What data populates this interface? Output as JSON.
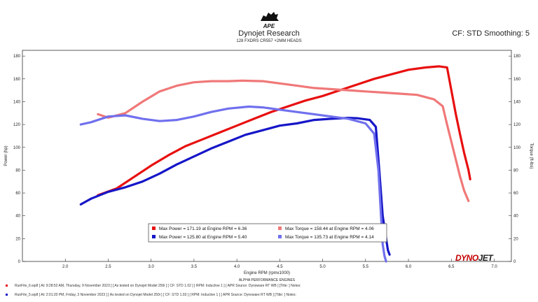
{
  "header": {
    "logo_text": "APE",
    "title": "Dynojet Research",
    "subtitle": "128 FXDRS CR557 +2MM HEADS",
    "cf_label": "CF: STD Smoothing: 5"
  },
  "brand": {
    "part1": "DYNO",
    "part2": "JET"
  },
  "footer": {
    "run1": "RunFile_6.wp8 [ At: 9:28:52 AM, Thursday, 9 November 2023 ] [ As tested on Dynojet Model 250i ] [ CF: STD 1.02 ] [ RPM: Inductive 1 ] [ APR Source: Dynoware RT WB ] [Title: ]    Notes:",
    "run2": "RunFile_5.wp8 [ At: 2:01:20 PM, Friday, 3 November 2023 ] [ As tested on Dynojet Model 250i ] [ CF: STD 1.03 ] [ RPM: Inductive 1 ] [ APR Source: Dynoware RT WB ] [Title: ]    Notes:"
  },
  "colors": {
    "red": "#e81010",
    "pink": "#f07878",
    "blue": "#1616c8",
    "lavender": "#7070ee"
  },
  "chart_data": {
    "type": "line",
    "title": "Dynojet Research",
    "xlabel": "Engine RPM (rpmx1000)",
    "x_sublabel": "ALPHA PERFORMANCE ENGINES",
    "ylabel_left": "Power (hp)",
    "ylabel_right": "Torque (ft-lbs)",
    "xlim": [
      1.5,
      7.2
    ],
    "ylim": [
      0,
      185
    ],
    "xticks": [
      "2.0",
      "2.5",
      "3.0",
      "3.5",
      "4.0",
      "4.5",
      "5.0",
      "5.5",
      "6.0",
      "6.5",
      "7.0"
    ],
    "yticks": [
      "0",
      "20",
      "40",
      "60",
      "80",
      "100",
      "120",
      "140",
      "160",
      "180"
    ],
    "grid": false,
    "legend_position": "bottom-center",
    "series": [
      {
        "name": "Max Power = 171.19 at Engine RPM = 6.36",
        "color": "#e81010",
        "x": [
          2.38,
          2.6,
          2.8,
          3.0,
          3.2,
          3.4,
          3.6,
          3.8,
          4.0,
          4.2,
          4.4,
          4.6,
          4.8,
          5.0,
          5.2,
          5.4,
          5.6,
          5.8,
          6.0,
          6.2,
          6.36,
          6.45,
          6.5,
          6.55,
          6.6,
          6.65,
          6.7,
          6.72
        ],
        "y": [
          58,
          64,
          74,
          84,
          93,
          101,
          107,
          113,
          119,
          125,
          131,
          136,
          141,
          145,
          150,
          155,
          160,
          164,
          168,
          170,
          171,
          170,
          150,
          130,
          112,
          95,
          80,
          72
        ]
      },
      {
        "name": "Max Torque = 158.44 at Engine RPM = 4.06",
        "color": "#f07878",
        "x": [
          2.38,
          2.5,
          2.7,
          2.9,
          3.1,
          3.3,
          3.5,
          3.7,
          3.9,
          4.06,
          4.3,
          4.5,
          4.7,
          4.9,
          5.1,
          5.3,
          5.5,
          5.7,
          5.9,
          6.1,
          6.3,
          6.4,
          6.45,
          6.5,
          6.55,
          6.6,
          6.65,
          6.7
        ],
        "y": [
          129,
          126,
          130,
          140,
          149,
          154,
          157,
          158,
          158,
          158.4,
          158,
          156,
          154,
          152,
          151,
          150,
          149,
          148,
          147,
          146,
          142,
          136,
          120,
          105,
          90,
          75,
          62,
          53
        ]
      },
      {
        "name": "Max Power = 125.80 at Engine RPM = 5.40",
        "color": "#1616c8",
        "x": [
          2.18,
          2.3,
          2.5,
          2.7,
          2.9,
          3.1,
          3.3,
          3.5,
          3.7,
          3.9,
          4.1,
          4.3,
          4.5,
          4.7,
          4.9,
          5.1,
          5.3,
          5.4,
          5.55,
          5.62,
          5.66,
          5.7,
          5.74,
          5.76,
          5.78
        ],
        "y": [
          50,
          55,
          61,
          65,
          70,
          77,
          85,
          92,
          99,
          105,
          111,
          115,
          119,
          121,
          124,
          125,
          125.8,
          125.5,
          124,
          118,
          80,
          40,
          20,
          10,
          6
        ]
      },
      {
        "name": "Max Torque = 135.73 at Engine RPM = 4.14",
        "color": "#7070ee",
        "x": [
          2.18,
          2.3,
          2.5,
          2.7,
          2.9,
          3.1,
          3.3,
          3.5,
          3.7,
          3.9,
          4.14,
          4.3,
          4.5,
          4.7,
          4.9,
          5.1,
          5.3,
          5.5,
          5.6,
          5.65,
          5.68,
          5.7,
          5.72,
          5.74
        ],
        "y": [
          120,
          122,
          127,
          128,
          125,
          123,
          124,
          127,
          131,
          134,
          135.7,
          135,
          133,
          131,
          129,
          127,
          125,
          121,
          112,
          80,
          40,
          15,
          5,
          0
        ]
      }
    ]
  }
}
